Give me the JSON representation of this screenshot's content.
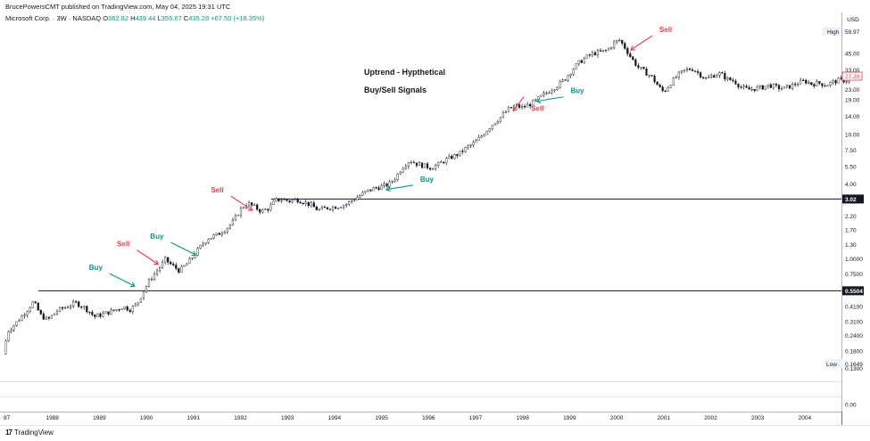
{
  "header": {
    "publisher": "BrucePowersCMT published on TradingView.com, May 04, 2025 19:31 UTC",
    "symbol": "Microsoft Corp. · 3W · NASDAQ",
    "o_label": "O",
    "o": "362.82",
    "h_label": "H",
    "h": "439.44",
    "l_label": "L",
    "l": "355.67",
    "c_label": "C",
    "c": "435.28",
    "change": "+67.50 (+18.35%)"
  },
  "footer": {
    "logo": "17",
    "brand": "TradingView"
  },
  "colors": {
    "up": "#089981",
    "down": "#f23645",
    "candle": "#131722",
    "buy": "#089981",
    "sell": "#f23645",
    "axis": "#f23645"
  },
  "chart_data": {
    "type": "candlestick",
    "title": "Uptrend - Hypthetical",
    "subtitle": "Buy/Sell Signals",
    "y_scale": "log",
    "y_axis_unit": "USD",
    "y_axis_ticks": [
      "45.00",
      "33.00",
      "23.00",
      "19.00",
      "14.00",
      "10.00",
      "7.50",
      "5.50",
      "4.00",
      "3.02",
      "2.20",
      "1.70",
      "1.30",
      "1.0000",
      "0.7500",
      "0.5504",
      "0.4100",
      "0.3100",
      "0.2400",
      "0.1800",
      "0.1300",
      "0.00"
    ],
    "y_axis_tick_values": [
      45,
      33,
      23,
      19,
      14,
      10,
      7.5,
      5.5,
      4,
      3.02,
      2.2,
      1.7,
      1.3,
      1,
      0.75,
      0.5504,
      0.41,
      0.31,
      0.24,
      0.18,
      0.13
    ],
    "x_axis_ticks": [
      "87",
      "1988",
      "1989",
      "1990",
      "1991",
      "1992",
      "1993",
      "1994",
      "1995",
      "1996",
      "1997",
      "1998",
      "1999",
      "2000",
      "2001",
      "2002",
      "2003",
      "2004"
    ],
    "x_axis_tick_years": [
      1987,
      1988,
      1989,
      1990,
      1991,
      1992,
      1993,
      1994,
      1995,
      1996,
      1997,
      1998,
      1999,
      2000,
      2001,
      2002,
      2003,
      2004
    ],
    "high_label": "High",
    "high_value": "59.97",
    "low_label": "Low",
    "low_value": "0.1649",
    "last_price": "27.20",
    "horizontal_levels": [
      {
        "label": "0.5504",
        "value": 0.5504,
        "from_year": 1987.7
      },
      {
        "label": "3.02",
        "value": 3.02,
        "from_year": 1992.65
      }
    ],
    "signals": [
      {
        "type": "Buy",
        "year": 1989.75,
        "price": 0.6
      },
      {
        "type": "Sell",
        "year": 1990.25,
        "price": 0.9
      },
      {
        "type": "Buy",
        "year": 1991.05,
        "price": 1.07
      },
      {
        "type": "Sell",
        "year": 1992.25,
        "price": 2.45
      },
      {
        "type": "Buy",
        "year": 1995.1,
        "price": 3.6
      },
      {
        "type": "Sell",
        "year": 1997.8,
        "price": 15.5
      },
      {
        "type": "Buy",
        "year": 1998.3,
        "price": 18.5
      },
      {
        "type": "Sell",
        "year": 2000.3,
        "price": 48.0
      }
    ],
    "price_path": [
      [
        1986.95,
        0.17
      ],
      [
        1987.05,
        0.26
      ],
      [
        1987.25,
        0.31
      ],
      [
        1987.45,
        0.38
      ],
      [
        1987.6,
        0.45
      ],
      [
        1987.75,
        0.35
      ],
      [
        1987.9,
        0.32
      ],
      [
        1988.1,
        0.38
      ],
      [
        1988.3,
        0.41
      ],
      [
        1988.5,
        0.44
      ],
      [
        1988.7,
        0.4
      ],
      [
        1988.9,
        0.34
      ],
      [
        1989.1,
        0.36
      ],
      [
        1989.3,
        0.38
      ],
      [
        1989.5,
        0.41
      ],
      [
        1989.65,
        0.39
      ],
      [
        1989.8,
        0.43
      ],
      [
        1989.95,
        0.56
      ],
      [
        1990.1,
        0.7
      ],
      [
        1990.25,
        0.82
      ],
      [
        1990.4,
        0.98
      ],
      [
        1990.55,
        0.88
      ],
      [
        1990.7,
        0.8
      ],
      [
        1990.85,
        0.9
      ],
      [
        1991.0,
        1.05
      ],
      [
        1991.15,
        1.25
      ],
      [
        1991.3,
        1.45
      ],
      [
        1991.5,
        1.55
      ],
      [
        1991.7,
        1.75
      ],
      [
        1991.85,
        2.0
      ],
      [
        1992.0,
        2.5
      ],
      [
        1992.15,
        2.8
      ],
      [
        1992.3,
        2.6
      ],
      [
        1992.45,
        2.4
      ],
      [
        1992.6,
        2.55
      ],
      [
        1992.75,
        2.95
      ],
      [
        1992.9,
        3.0
      ],
      [
        1993.05,
        2.9
      ],
      [
        1993.2,
        3.0
      ],
      [
        1993.35,
        2.85
      ],
      [
        1993.5,
        2.7
      ],
      [
        1993.65,
        2.45
      ],
      [
        1993.8,
        2.55
      ],
      [
        1993.95,
        2.6
      ],
      [
        1994.1,
        2.65
      ],
      [
        1994.25,
        2.75
      ],
      [
        1994.4,
        3.0
      ],
      [
        1994.55,
        3.25
      ],
      [
        1994.7,
        3.5
      ],
      [
        1994.85,
        3.7
      ],
      [
        1995.0,
        3.8
      ],
      [
        1995.15,
        3.95
      ],
      [
        1995.3,
        4.5
      ],
      [
        1995.45,
        5.5
      ],
      [
        1995.6,
        6.2
      ],
      [
        1995.75,
        5.8
      ],
      [
        1995.9,
        5.6
      ],
      [
        1996.05,
        5.4
      ],
      [
        1996.2,
        5.7
      ],
      [
        1996.35,
        6.2
      ],
      [
        1996.5,
        6.6
      ],
      [
        1996.65,
        7.0
      ],
      [
        1996.8,
        7.8
      ],
      [
        1996.95,
        8.4
      ],
      [
        1997.1,
        9.5
      ],
      [
        1997.25,
        11.0
      ],
      [
        1997.4,
        12.5
      ],
      [
        1997.55,
        14.0
      ],
      [
        1997.7,
        16.0
      ],
      [
        1997.85,
        17.0
      ],
      [
        1998.0,
        16.5
      ],
      [
        1998.15,
        17.5
      ],
      [
        1998.3,
        19.0
      ],
      [
        1998.45,
        21.0
      ],
      [
        1998.6,
        23.0
      ],
      [
        1998.75,
        25.0
      ],
      [
        1998.9,
        28.0
      ],
      [
        1999.05,
        33.0
      ],
      [
        1999.2,
        38.0
      ],
      [
        1999.35,
        42.0
      ],
      [
        1999.5,
        45.0
      ],
      [
        1999.65,
        46.0
      ],
      [
        1999.8,
        48.0
      ],
      [
        1999.95,
        55.0
      ],
      [
        2000.05,
        58.0
      ],
      [
        2000.15,
        52.0
      ],
      [
        2000.3,
        42.0
      ],
      [
        2000.45,
        35.0
      ],
      [
        2000.6,
        32.0
      ],
      [
        2000.75,
        29.0
      ],
      [
        2000.9,
        24.0
      ],
      [
        2001.0,
        22.0
      ],
      [
        2001.15,
        26.0
      ],
      [
        2001.3,
        30.0
      ],
      [
        2001.45,
        33.0
      ],
      [
        2001.6,
        34.0
      ],
      [
        2001.75,
        31.0
      ],
      [
        2001.9,
        28.0
      ],
      [
        2002.05,
        30.0
      ],
      [
        2002.2,
        31.0
      ],
      [
        2002.35,
        28.0
      ],
      [
        2002.5,
        27.0
      ],
      [
        2002.65,
        24.0
      ],
      [
        2002.8,
        23.0
      ],
      [
        2002.95,
        23.5
      ],
      [
        2003.1,
        24.0
      ],
      [
        2003.25,
        25.0
      ],
      [
        2003.4,
        24.0
      ],
      [
        2003.55,
        23.5
      ],
      [
        2003.7,
        24.5
      ],
      [
        2003.85,
        26.0
      ],
      [
        2004.0,
        27.0
      ],
      [
        2004.15,
        25.5
      ],
      [
        2004.3,
        26.0
      ],
      [
        2004.45,
        25.0
      ],
      [
        2004.6,
        26.5
      ],
      [
        2004.75,
        27.5
      ],
      [
        2004.9,
        27.2
      ]
    ]
  }
}
